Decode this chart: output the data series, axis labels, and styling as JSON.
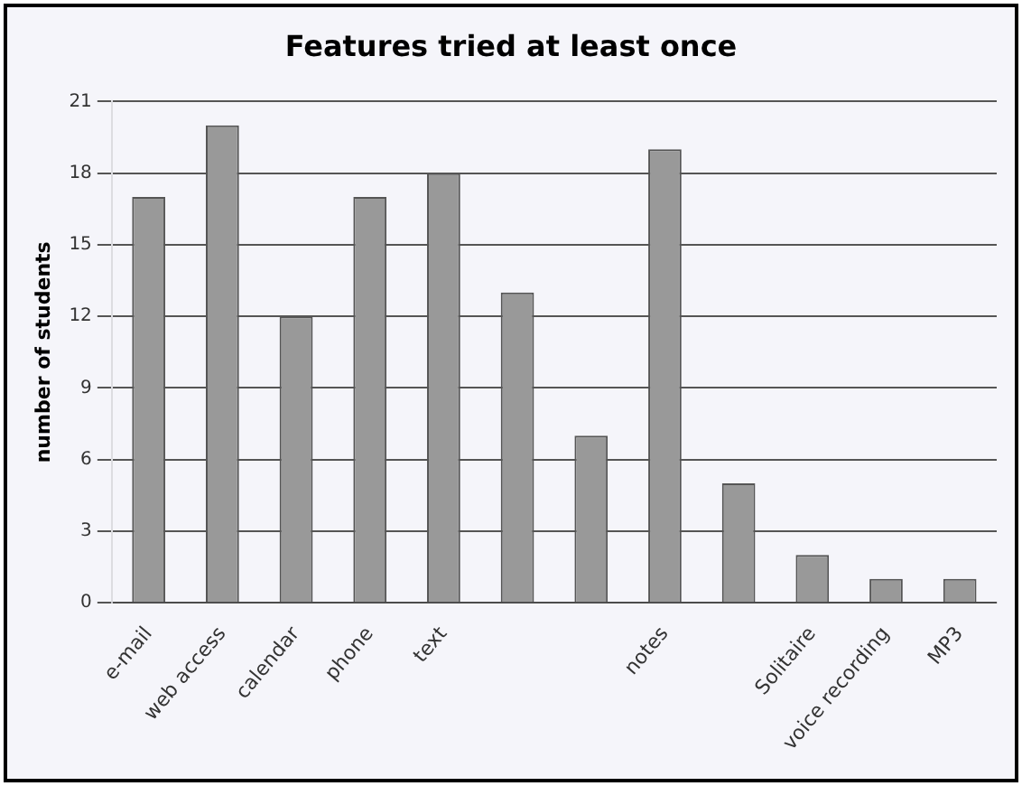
{
  "chart_data": {
    "type": "bar",
    "title": "Features tried at least once",
    "ylabel": "number of students",
    "categories": [
      "e-mail",
      "web access",
      "calendar",
      "phone",
      "text",
      null,
      null,
      "notes",
      null,
      "Solitaire",
      "voice recording",
      "MP3"
    ],
    "values": [
      17,
      20,
      12,
      17,
      18,
      13,
      7,
      19,
      5,
      2,
      1,
      1
    ],
    "color": "#999999",
    "ylim": [
      0,
      21
    ],
    "yticks": [
      0,
      3,
      6,
      9,
      12,
      15,
      18,
      21
    ],
    "grid": "y"
  }
}
